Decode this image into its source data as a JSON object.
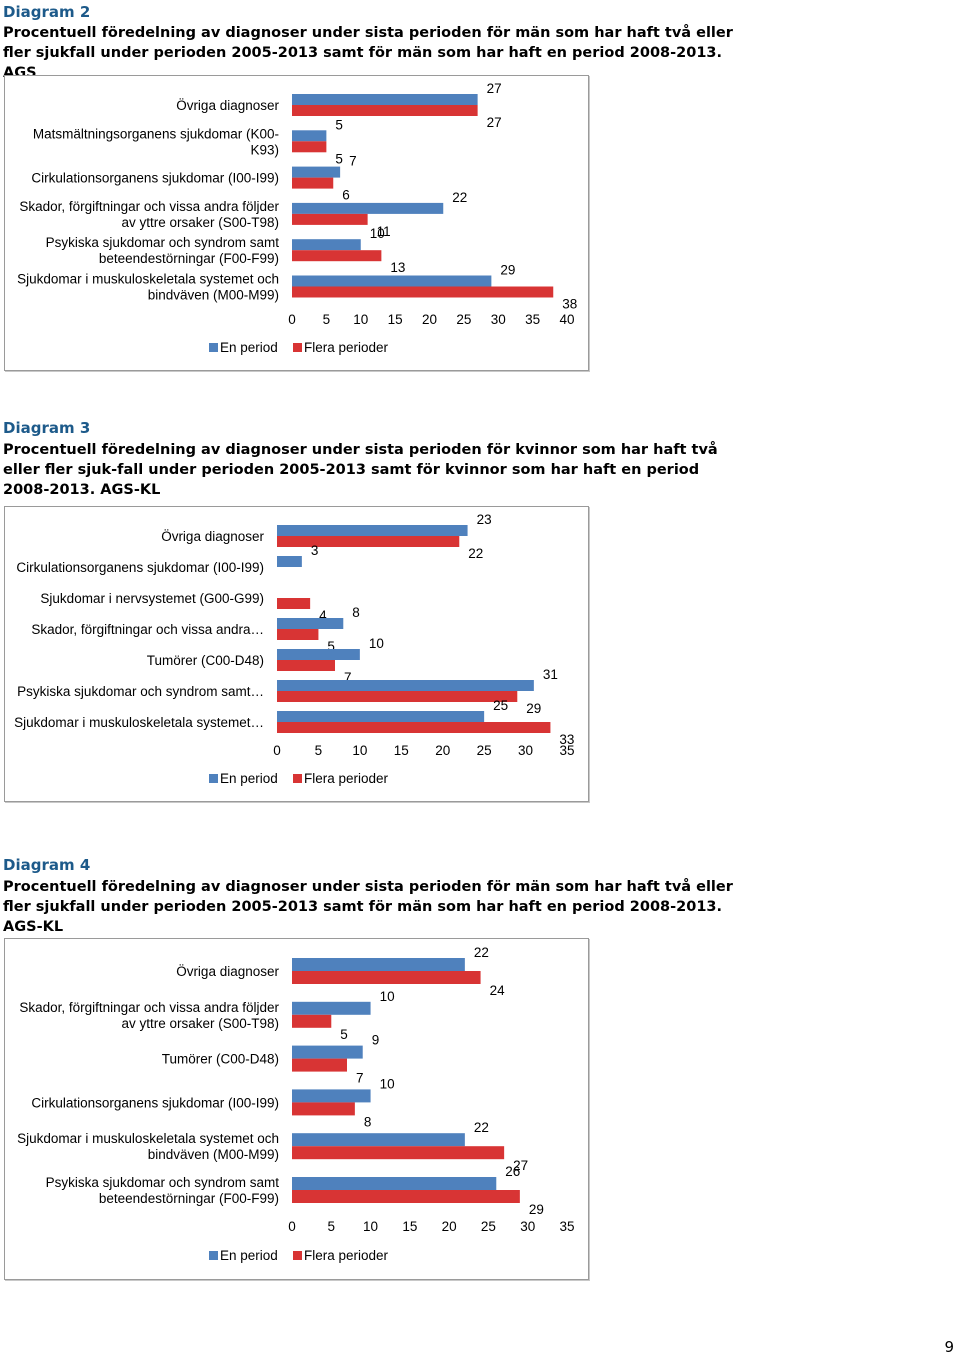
{
  "page_number": "9",
  "colors": {
    "en_period": "#4f81bd",
    "flera_perioder": "#d83434",
    "label_accent": "#1d5a8a"
  },
  "chart_data": [
    {
      "type": "bar",
      "orientation": "horizontal",
      "diagram_label": "Diagram 2",
      "title": "Procentuell föredelning av diagnoser under sista perioden för män som har haft två eller fler sjukfall under perioden 2005-2013 samt för män som har haft en period 2008-2013. AGS",
      "categories": [
        [
          "Övriga diagnoser"
        ],
        [
          "Matsmältningsorganens sjukdomar (K00-",
          "K93)"
        ],
        [
          "Cirkulationsorganens sjukdomar (I00-I99)"
        ],
        [
          "Skador, förgiftningar och vissa andra följder",
          "av yttre orsaker (S00-T98)"
        ],
        [
          "Psykiska sjukdomar och syndrom samt",
          "beteendestörningar (F00-F99)"
        ],
        [
          "Sjukdomar i muskuloskeletala systemet och",
          "bindväven (M00-M99)"
        ]
      ],
      "series": [
        {
          "name": "En period",
          "values": [
            27,
            5,
            7,
            22,
            10,
            29
          ]
        },
        {
          "name": "Flera perioder",
          "values": [
            27,
            5,
            6,
            11,
            13,
            38
          ]
        }
      ],
      "xlim": [
        0,
        40
      ],
      "xticks": [
        0,
        5,
        10,
        15,
        20,
        25,
        30,
        35,
        40
      ],
      "legend": "bottom",
      "grid": false
    },
    {
      "type": "bar",
      "orientation": "horizontal",
      "diagram_label": "Diagram 3",
      "title": "Procentuell föredelning av diagnoser under sista perioden för kvinnor som har haft två eller fler sjuk-fall under perioden 2005-2013 samt för kvinnor som har haft en period 2008-2013. AGS-KL",
      "categories": [
        [
          "Övriga diagnoser"
        ],
        [
          "Cirkulationsorganens sjukdomar (I00-I99)"
        ],
        [
          "Sjukdomar i nervsystemet (G00-G99)"
        ],
        [
          "Skador, förgiftningar och vissa andra…"
        ],
        [
          "Tumörer (C00-D48)"
        ],
        [
          "Psykiska sjukdomar och syndrom samt…"
        ],
        [
          "Sjukdomar i muskuloskeletala systemet…"
        ]
      ],
      "series": [
        {
          "name": "En period",
          "values": [
            23,
            3,
            null,
            8,
            10,
            31,
            25
          ]
        },
        {
          "name": "Flera perioder",
          "values": [
            22,
            null,
            4,
            5,
            7,
            29,
            33
          ]
        }
      ],
      "xlim": [
        0,
        35
      ],
      "xticks": [
        0,
        5,
        10,
        15,
        20,
        25,
        30,
        35
      ],
      "legend": "bottom",
      "grid": false
    },
    {
      "type": "bar",
      "orientation": "horizontal",
      "diagram_label": "Diagram 4",
      "title": "Procentuell föredelning av diagnoser under sista perioden för män som har haft två eller fler sjukfall under perioden 2005-2013 samt för män som har haft en period 2008-2013. AGS-KL",
      "categories": [
        [
          "Övriga diagnoser"
        ],
        [
          "Skador, förgiftningar och vissa andra följder",
          "av yttre orsaker (S00-T98)"
        ],
        [
          "Tumörer (C00-D48)"
        ],
        [
          "Cirkulationsorganens sjukdomar (I00-I99)"
        ],
        [
          "Sjukdomar i muskuloskeletala systemet och",
          "bindväven (M00-M99)"
        ],
        [
          "Psykiska sjukdomar och syndrom samt",
          "beteendestörningar (F00-F99)"
        ]
      ],
      "series": [
        {
          "name": "En period",
          "values": [
            22,
            10,
            9,
            10,
            22,
            26
          ]
        },
        {
          "name": "Flera perioder",
          "values": [
            24,
            5,
            7,
            8,
            27,
            29
          ]
        }
      ],
      "xlim": [
        0,
        35
      ],
      "xticks": [
        0,
        5,
        10,
        15,
        20,
        25,
        30,
        35
      ],
      "legend": "bottom",
      "grid": false
    }
  ]
}
